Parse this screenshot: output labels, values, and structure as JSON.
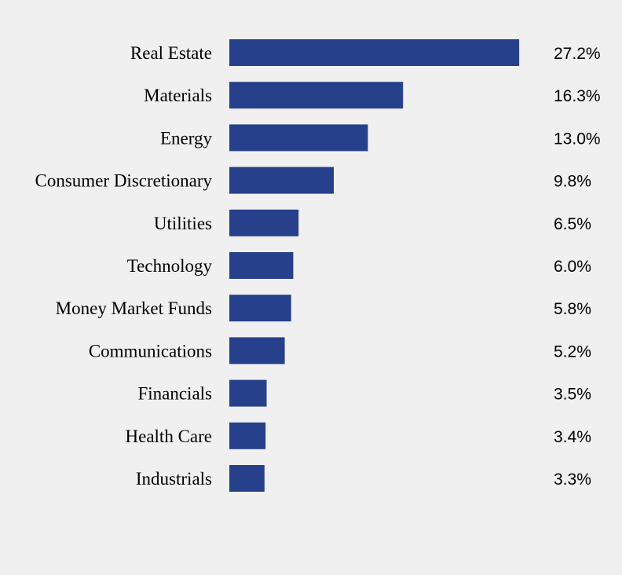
{
  "chart_data": {
    "type": "bar",
    "orientation": "horizontal",
    "categories": [
      "Real Estate",
      "Materials",
      "Energy",
      "Consumer Discretionary",
      "Utilities",
      "Technology",
      "Money Market Funds",
      "Communications",
      "Financials",
      "Health Care",
      "Industrials"
    ],
    "values": [
      27.2,
      16.3,
      13.0,
      9.8,
      6.5,
      6.0,
      5.8,
      5.2,
      3.5,
      3.4,
      3.3
    ],
    "value_labels": [
      "27.2%",
      "16.3%",
      "13.0%",
      "9.8%",
      "6.5%",
      "6.0%",
      "5.8%",
      "5.2%",
      "3.5%",
      "3.4%",
      "3.3%"
    ],
    "title": "",
    "xlabel": "",
    "ylabel": "",
    "grid": false,
    "legend": "none",
    "bar_color": "#26408b",
    "background": "#f0f0f0"
  }
}
